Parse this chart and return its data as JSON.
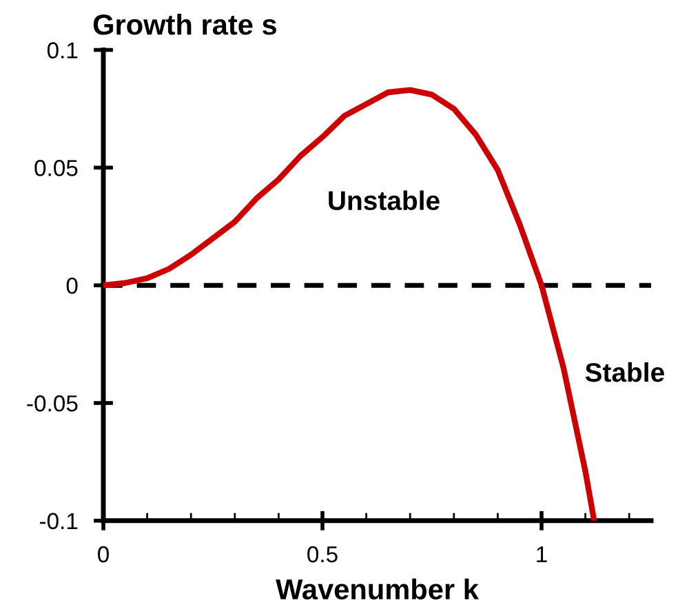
{
  "chart_data": {
    "type": "line",
    "xlabel": "Wavenumber k",
    "ylabel": "Growth rate s",
    "x": [
      0,
      0.05,
      0.1,
      0.15,
      0.2,
      0.25,
      0.3,
      0.35,
      0.4,
      0.45,
      0.5,
      0.55,
      0.6,
      0.65,
      0.7,
      0.75,
      0.8,
      0.85,
      0.9,
      0.95,
      1.0,
      1.05,
      1.1,
      1.12
    ],
    "series": [
      {
        "color": "#cc0000",
        "values": [
          0,
          0.001,
          0.003,
          0.007,
          0.013,
          0.02,
          0.027,
          0.037,
          0.045,
          0.055,
          0.063,
          0.072,
          0.077,
          0.082,
          0.083,
          0.081,
          0.075,
          0.064,
          0.049,
          0.026,
          0,
          -0.035,
          -0.079,
          -0.1
        ]
      }
    ],
    "xlim": [
      0,
      1.25
    ],
    "ylim": [
      -0.1,
      0.1
    ],
    "xticks": [
      0,
      {
        "value": 0.1,
        "label": null
      },
      {
        "value": 0.2,
        "label": null
      },
      {
        "value": 0.3,
        "label": null
      },
      {
        "value": 0.4,
        "label": null
      },
      0.5,
      {
        "value": 0.6,
        "label": null
      },
      {
        "value": 0.7,
        "label": null
      },
      {
        "value": 0.8,
        "label": null
      },
      {
        "value": 0.9,
        "label": null
      },
      1,
      {
        "value": 1.1,
        "label": null
      },
      {
        "value": 1.2,
        "label": null
      }
    ],
    "yticks": [
      -0.1,
      -0.05,
      0,
      0.05,
      0.1
    ],
    "ref_lines": [
      {
        "axis": "y",
        "value": 0,
        "color": "#000000",
        "line_style": "dashed"
      }
    ],
    "annotations": [
      "Unstable",
      "Stable"
    ],
    "grid": false,
    "legend": false,
    "marker": "none",
    "line_style": "solid"
  }
}
